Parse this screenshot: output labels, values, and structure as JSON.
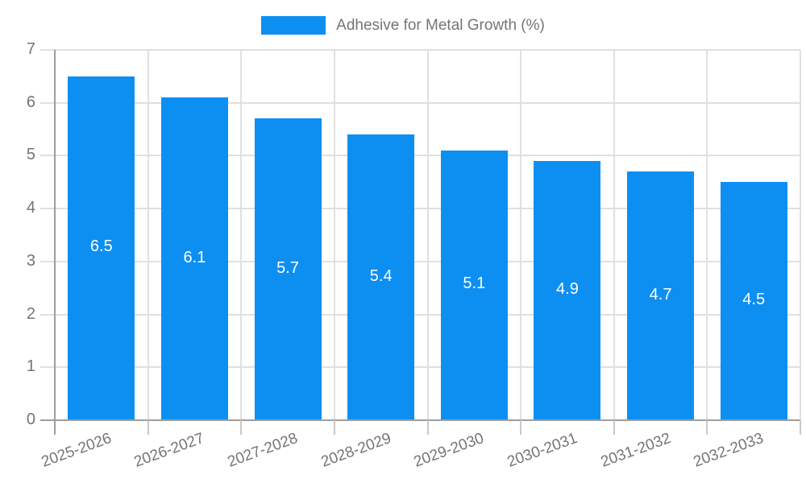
{
  "legend": {
    "label": "Adhesive for Metal Growth (%)"
  },
  "chart_data": {
    "type": "bar",
    "title": "Adhesive for Metal Growth (%)",
    "categories": [
      "2025-2026",
      "2026-2027",
      "2027-2028",
      "2028-2029",
      "2029-2030",
      "2030-2031",
      "2031-2032",
      "2032-2033"
    ],
    "series": [
      {
        "name": "Adhesive for Metal Growth (%)",
        "values": [
          6.5,
          6.1,
          5.7,
          5.4,
          5.1,
          4.9,
          4.7,
          4.5
        ]
      }
    ],
    "value_labels": [
      "6.5",
      "6.1",
      "5.7",
      "5.4",
      "5.1",
      "4.9",
      "4.7",
      "4.5"
    ],
    "xlabel": "",
    "ylabel": "",
    "ylim": [
      0,
      7
    ],
    "yticks": [
      "0",
      "1",
      "2",
      "3",
      "4",
      "5",
      "6",
      "7"
    ],
    "grid": true,
    "legend_position": "top-center",
    "x_tick_label_rotation_deg": -20,
    "colors": {
      "bar": "#0d8ff2",
      "value_label": "#ffffff",
      "grid": "#e0e0e0",
      "axis": "#9e9e9e",
      "boundary_tick": "#c9c9c9",
      "tick_label": "#757575",
      "legend_text": "#757575",
      "background": "#ffffff"
    }
  }
}
